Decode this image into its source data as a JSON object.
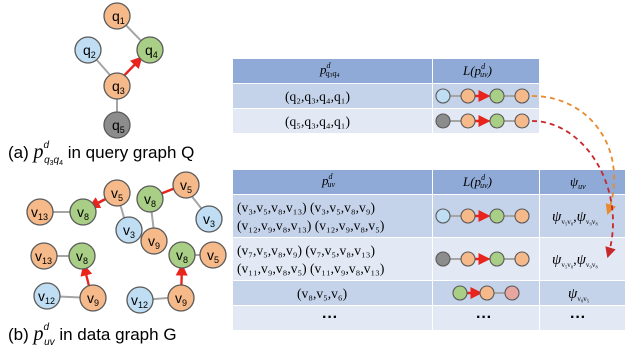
{
  "colors": {
    "orange": "#F5B98A",
    "green": "#A8CF85",
    "blue": "#BFDDF3",
    "gray": "#8C8C8C",
    "node_stroke": "#5A5A5A",
    "edge": "#A5A5A5",
    "arrow": "#E8241C",
    "table_header": "#8FAAD6",
    "row_dark": "#C5D3EA",
    "row_light": "#E2E8F4",
    "table_border": "#FFFFFF",
    "dash_orange": "#E88A2E",
    "dash_red": "#C8282A"
  },
  "query_graph": {
    "nodes": [
      {
        "id": "q1",
        "label": "q",
        "sub": "1",
        "color": "orange"
      },
      {
        "id": "q2",
        "label": "q",
        "sub": "2",
        "color": "blue"
      },
      {
        "id": "q3",
        "label": "q",
        "sub": "3",
        "color": "orange"
      },
      {
        "id": "q4",
        "label": "q",
        "sub": "4",
        "color": "green"
      },
      {
        "id": "q5",
        "label": "q",
        "sub": "5",
        "color": "gray"
      }
    ],
    "caption": {
      "prefix": "(a)",
      "symbol": "p",
      "sup": "d",
      "sub": "q",
      "sub2a": "3",
      "sub2b": "q",
      "sub2c": "4",
      "suffix": " in query graph Q"
    }
  },
  "data_graph": {
    "caption": {
      "prefix": "(b)",
      "symbol": "p",
      "sup": "d",
      "sub": "uv",
      "suffix": " in data graph G"
    },
    "node_labels": [
      "v",
      "13",
      "8",
      "5",
      "3",
      "9",
      "12"
    ]
  },
  "table_top": {
    "headers": [
      "p",
      "L(p"
    ],
    "header_p_sup": "d",
    "header_p_sub": "q3q4",
    "rows": [
      {
        "path": "(q₂,q₃,q₄,q₁)",
        "chain": [
          "blue",
          "orange",
          "green",
          "orange"
        ]
      },
      {
        "path": "(q₅,q₃,q₄,q₁)",
        "chain": [
          "gray",
          "orange",
          "green",
          "orange"
        ]
      }
    ]
  },
  "table_bottom": {
    "header_col1": "p",
    "header_col2": "L(p",
    "header_col3": "ψ",
    "header_col3_sub": "uv",
    "rows": [
      {
        "line1": "(v₃,v₅,v₈,v₁₃) (v₃,v₅,v₈,v₉)",
        "line2": "(v₁₂,v₉,v₈,v₁₃) (v₁₂,v₉,v₈,v₅)",
        "chain": [
          "blue",
          "orange",
          "green",
          "orange"
        ],
        "psi": "ψ",
        "psi_subs": [
          "v₅v₈",
          "v₉v₈"
        ]
      },
      {
        "line1": "(v₇,v₅,v₈,v₉) (v₇,v₅,v₈,v₁₃)",
        "line2": "(v₁₁,v₉,v₈,v₅) (v₁₁,v₉,v₈,v₁₃)",
        "chain": [
          "gray",
          "orange",
          "green",
          "orange"
        ],
        "psi": "ψ",
        "psi_subs": [
          "v₅v₈",
          "v₉v₈"
        ]
      },
      {
        "line1": "(v₈,v₅,v₆)",
        "line2": "",
        "chain": [
          "green",
          "orange",
          "pink"
        ],
        "psi": "ψ",
        "psi_subs": [
          "v₈v₅"
        ]
      },
      {
        "line1": "···",
        "line2": "",
        "dots_col2": "···",
        "dots_col3": "···"
      }
    ]
  }
}
